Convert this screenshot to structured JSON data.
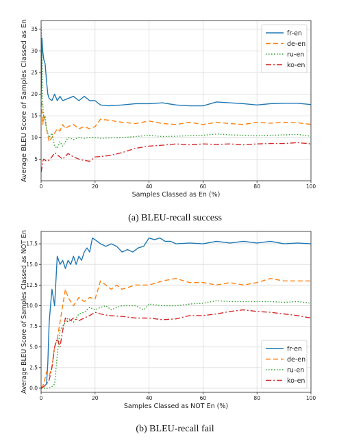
{
  "captions": {
    "a": "(a) BLEU-recall success",
    "b": "(b) BLEU-recall fail"
  },
  "series_styles": [
    {
      "name": "fr-en",
      "color": "#1f77b4",
      "dash": ""
    },
    {
      "name": "de-en",
      "color": "#ff7f0e",
      "dash": "7,4"
    },
    {
      "name": "ru-en",
      "color": "#2ca02c",
      "dash": "1.5,2.5"
    },
    {
      "name": "ko-en",
      "color": "#d62728",
      "dash": "8,3,2,3"
    }
  ],
  "chart_data": [
    {
      "type": "line",
      "xlabel": "Samples Classed as En (%)",
      "ylabel": "Average BLEU Score of Samples Classed as En",
      "xlim": [
        0,
        100
      ],
      "ylim": [
        0,
        37
      ],
      "xticks": [
        0,
        20,
        40,
        60,
        80,
        100
      ],
      "yticks": [
        5,
        10,
        15,
        20,
        25,
        30,
        35
      ],
      "ytick_labels": [
        "5",
        "10",
        "15",
        "20",
        "25",
        "30",
        "35"
      ],
      "grid": true,
      "legend_position": "top-right",
      "series": [
        {
          "name": "fr-en",
          "x": [
            0,
            0.3,
            0.6,
            1,
            1.5,
            2,
            2.5,
            3,
            4,
            5,
            6,
            7,
            8,
            10,
            12,
            14,
            16,
            18,
            20,
            22,
            25,
            30,
            35,
            40,
            45,
            50,
            55,
            60,
            65,
            70,
            75,
            80,
            85,
            90,
            95,
            100
          ],
          "y": [
            19,
            33,
            30,
            28,
            27,
            23,
            20,
            19,
            18.5,
            20,
            18.5,
            19.5,
            18.5,
            19,
            19.5,
            18.5,
            19.5,
            18.5,
            18.5,
            17.5,
            17.3,
            17.5,
            17.8,
            17.8,
            18,
            17.5,
            17.3,
            17.3,
            18.2,
            18,
            17.8,
            17.5,
            17.8,
            17.9,
            17.9,
            17.6
          ]
        },
        {
          "name": "de-en",
          "x": [
            0,
            0.3,
            0.6,
            1,
            1.5,
            2,
            3,
            4,
            5,
            6,
            7,
            8,
            9,
            10,
            12,
            14,
            16,
            18,
            20,
            22,
            25,
            30,
            35,
            40,
            45,
            50,
            55,
            60,
            65,
            70,
            75,
            80,
            85,
            90,
            95,
            100
          ],
          "y": [
            20,
            16,
            13,
            15,
            14,
            12,
            9,
            10,
            11,
            12,
            11.5,
            13,
            12,
            12.5,
            13,
            12,
            12.5,
            12,
            12.5,
            14.2,
            14,
            13.5,
            13.2,
            13.8,
            13.2,
            13,
            13.5,
            13,
            13.5,
            13.2,
            13,
            13.5,
            13.3,
            13.5,
            13.4,
            13
          ]
        },
        {
          "name": "ru-en",
          "x": [
            0,
            0.3,
            0.6,
            1,
            1.5,
            2,
            3,
            4,
            5,
            6,
            7,
            8,
            9,
            10,
            12,
            14,
            16,
            18,
            20,
            22,
            25,
            30,
            35,
            40,
            45,
            50,
            55,
            60,
            65,
            70,
            75,
            80,
            85,
            90,
            95,
            100
          ],
          "y": [
            35.5,
            30,
            18,
            14,
            15,
            12,
            10,
            11,
            8,
            7.5,
            9,
            8,
            9,
            10,
            9.5,
            10,
            9.8,
            10,
            10,
            9.8,
            9.9,
            10,
            10.2,
            10.5,
            10.2,
            10.3,
            10.4,
            10.5,
            10.8,
            10.6,
            10.5,
            10.4,
            10.5,
            10.6,
            10.7,
            10.3
          ]
        },
        {
          "name": "ko-en",
          "x": [
            0,
            0.3,
            0.6,
            1,
            2,
            3,
            4,
            5,
            6,
            8,
            10,
            12,
            14,
            16,
            18,
            20,
            22,
            25,
            28,
            30,
            35,
            40,
            45,
            50,
            55,
            60,
            65,
            70,
            75,
            80,
            85,
            90,
            95,
            100
          ],
          "y": [
            2,
            3,
            4.5,
            5,
            4.5,
            4.8,
            5.5,
            6.5,
            6,
            5,
            6.3,
            5.5,
            5,
            4.7,
            4.5,
            5.5,
            5.6,
            5.8,
            6.2,
            6.5,
            7.5,
            8,
            8.2,
            8.5,
            8.3,
            8.5,
            8.4,
            8.5,
            8.3,
            8.5,
            8.6,
            8.6,
            8.8,
            8.5
          ]
        }
      ]
    },
    {
      "type": "line",
      "xlabel": "Samples Classed as NOT En (%)",
      "ylabel": "Average BLEU Score of Samples Classed as NOT En",
      "xlim": [
        0,
        100
      ],
      "ylim": [
        -0.5,
        19
      ],
      "xticks": [
        0,
        20,
        40,
        60,
        80,
        100
      ],
      "yticks": [
        0,
        2.5,
        5,
        7.5,
        10,
        12.5,
        15,
        17.5
      ],
      "ytick_labels": [
        "0.0",
        "2.5",
        "5.0",
        "7.5",
        "10.0",
        "12.5",
        "15.0",
        "17.5"
      ],
      "grid": true,
      "legend_position": "bottom-right",
      "series": [
        {
          "name": "fr-en",
          "x": [
            0,
            1,
            2,
            2.5,
            3,
            4,
            5,
            6,
            7,
            8,
            9,
            10,
            11,
            12,
            13,
            14,
            15,
            16,
            17,
            18,
            19,
            20,
            22,
            24,
            26,
            28,
            30,
            32,
            34,
            36,
            38,
            40,
            42,
            44,
            46,
            48,
            50,
            55,
            60,
            65,
            70,
            75,
            80,
            85,
            90,
            95,
            100
          ],
          "y": [
            0,
            0.2,
            0.5,
            3,
            8,
            12,
            10,
            16,
            15,
            15.5,
            14.5,
            15.5,
            15,
            16,
            15,
            16,
            15.5,
            16.5,
            17,
            16.5,
            18.2,
            18,
            17.5,
            17.2,
            17.5,
            17.2,
            16.5,
            16.8,
            16.5,
            17,
            17.2,
            18.2,
            18,
            18.2,
            17.8,
            17.8,
            17.5,
            17.6,
            17.5,
            17.8,
            17.6,
            17.8,
            17.6,
            17.8,
            17.5,
            17.6,
            17.5
          ]
        },
        {
          "name": "de-en",
          "x": [
            0,
            1,
            2,
            3,
            4,
            5,
            6,
            7,
            8,
            9,
            10,
            12,
            14,
            16,
            18,
            20,
            22,
            24,
            26,
            28,
            30,
            35,
            40,
            45,
            50,
            55,
            60,
            65,
            70,
            75,
            80,
            85,
            90,
            95,
            100
          ],
          "y": [
            0,
            0.5,
            2,
            1.5,
            2.5,
            5,
            6,
            8,
            10,
            12,
            11,
            10,
            11,
            10.5,
            11,
            10.8,
            13,
            12.5,
            12,
            12.5,
            12,
            12.5,
            12.5,
            13,
            13.3,
            12.8,
            12.8,
            12.5,
            12.8,
            12.5,
            12.8,
            13.3,
            13,
            13,
            13
          ]
        },
        {
          "name": "ru-en",
          "x": [
            0,
            1,
            2,
            3,
            4,
            5,
            6,
            7,
            8,
            9,
            10,
            12,
            14,
            16,
            18,
            20,
            22,
            24,
            26,
            28,
            30,
            35,
            38,
            40,
            45,
            50,
            55,
            60,
            65,
            70,
            75,
            80,
            85,
            90,
            95,
            100
          ],
          "y": [
            0,
            0,
            0,
            0,
            0.2,
            0.5,
            4,
            7,
            7.5,
            8,
            8.5,
            8,
            9,
            9.2,
            9.8,
            9.5,
            9.8,
            10,
            9.5,
            9.8,
            10,
            10,
            9.5,
            10.2,
            10,
            10,
            10.2,
            10.3,
            10.6,
            10.5,
            10.5,
            10.5,
            10.5,
            10.4,
            10.5,
            10.3
          ]
        },
        {
          "name": "ko-en",
          "x": [
            0,
            1,
            2,
            3,
            4,
            5,
            6,
            7,
            8,
            9,
            10,
            12,
            14,
            16,
            18,
            20,
            22,
            25,
            30,
            35,
            40,
            45,
            50,
            55,
            60,
            65,
            70,
            75,
            80,
            85,
            90,
            95,
            100
          ],
          "y": [
            0,
            0.2,
            0.5,
            1,
            2.5,
            5,
            6,
            5,
            7,
            8.5,
            8,
            8.5,
            8.2,
            8.5,
            8.8,
            9.2,
            9,
            8.8,
            8.7,
            8.5,
            8.5,
            8.3,
            8.4,
            8.8,
            8.8,
            9,
            9.3,
            9.5,
            9.3,
            9.2,
            9,
            8.8,
            8.5
          ]
        }
      ]
    }
  ]
}
